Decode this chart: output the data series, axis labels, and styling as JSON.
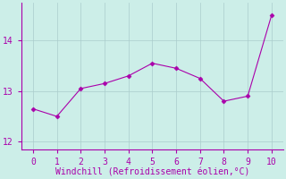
{
  "x": [
    0,
    1,
    2,
    3,
    4,
    5,
    6,
    7,
    8,
    9,
    10
  ],
  "y": [
    12.65,
    12.5,
    13.05,
    13.15,
    13.3,
    13.55,
    13.45,
    13.25,
    12.8,
    12.9,
    14.5
  ],
  "line_color": "#aa00aa",
  "marker": "D",
  "marker_size": 2.5,
  "background_color": "#cceee8",
  "grid_color": "#aacccc",
  "xlabel": "Windchill (Refroidissement éolien,°C)",
  "xlabel_color": "#aa00aa",
  "xlabel_fontsize": 7.0,
  "tick_color": "#aa00aa",
  "tick_fontsize": 7.0,
  "ylim": [
    11.85,
    14.75
  ],
  "xlim": [
    -0.5,
    10.5
  ],
  "yticks": [
    12,
    13,
    14
  ],
  "xticks": [
    0,
    1,
    2,
    3,
    4,
    5,
    6,
    7,
    8,
    9,
    10
  ]
}
